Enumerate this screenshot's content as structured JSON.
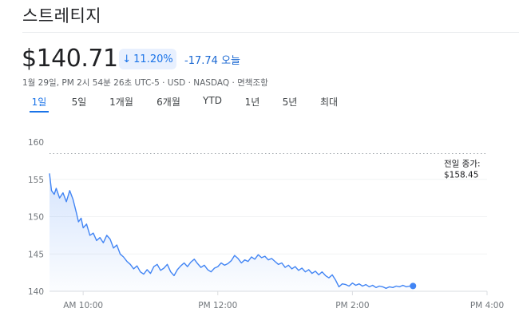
{
  "title": "스트레티지",
  "price": "$140.71",
  "change": {
    "percent": "11.20%",
    "amount": "-17.74",
    "period": "오늘",
    "direction_icon": "arrow-down-icon",
    "color": "#1a73e8"
  },
  "meta": "1월 29일, PM 2시 54분 26초 UTC-5 · USD · NASDAQ · 면책조항",
  "tabs": [
    {
      "label": "1일",
      "active": true
    },
    {
      "label": "5일",
      "active": false
    },
    {
      "label": "1개월",
      "active": false
    },
    {
      "label": "6개월",
      "active": false
    },
    {
      "label": "YTD",
      "active": false
    },
    {
      "label": "1년",
      "active": false
    },
    {
      "label": "5년",
      "active": false
    },
    {
      "label": "최대",
      "active": false
    }
  ],
  "chart_data": {
    "type": "area",
    "y_ticks": [
      "160",
      "155",
      "150",
      "145",
      "140"
    ],
    "x_ticks": [
      "AM 10:00",
      "PM 12:00",
      "PM 2:00",
      "PM 4:00"
    ],
    "ylim": [
      140,
      160
    ],
    "previous_close": {
      "label_line1": "전일 종가:",
      "label_line2": "$158.45",
      "value": 158.45
    },
    "line_color": "#4285f4",
    "series": [
      {
        "values": [
          [
            9.5,
            155.8
          ],
          [
            9.53,
            153.5
          ],
          [
            9.57,
            153.0
          ],
          [
            9.6,
            153.8
          ],
          [
            9.65,
            152.5
          ],
          [
            9.7,
            153.2
          ],
          [
            9.75,
            152.0
          ],
          [
            9.8,
            153.5
          ],
          [
            9.85,
            152.3
          ],
          [
            9.9,
            150.5
          ],
          [
            9.93,
            149.3
          ],
          [
            9.97,
            149.8
          ],
          [
            10.0,
            148.5
          ],
          [
            10.05,
            149.0
          ],
          [
            10.1,
            147.5
          ],
          [
            10.15,
            147.8
          ],
          [
            10.2,
            146.8
          ],
          [
            10.25,
            147.2
          ],
          [
            10.3,
            146.5
          ],
          [
            10.35,
            147.5
          ],
          [
            10.4,
            147.0
          ],
          [
            10.45,
            145.8
          ],
          [
            10.5,
            146.2
          ],
          [
            10.55,
            145.0
          ],
          [
            10.6,
            144.6
          ],
          [
            10.65,
            144.0
          ],
          [
            10.7,
            143.6
          ],
          [
            10.75,
            143.0
          ],
          [
            10.8,
            143.4
          ],
          [
            10.85,
            142.6
          ],
          [
            10.9,
            142.3
          ],
          [
            10.95,
            142.9
          ],
          [
            11.0,
            142.4
          ],
          [
            11.05,
            143.3
          ],
          [
            11.1,
            143.6
          ],
          [
            11.15,
            142.8
          ],
          [
            11.2,
            143.1
          ],
          [
            11.25,
            143.6
          ],
          [
            11.3,
            142.6
          ],
          [
            11.35,
            142.1
          ],
          [
            11.4,
            142.9
          ],
          [
            11.45,
            143.4
          ],
          [
            11.5,
            143.8
          ],
          [
            11.55,
            143.3
          ],
          [
            11.6,
            143.9
          ],
          [
            11.65,
            144.3
          ],
          [
            11.7,
            143.7
          ],
          [
            11.75,
            143.2
          ],
          [
            11.8,
            143.5
          ],
          [
            11.85,
            142.9
          ],
          [
            11.9,
            142.6
          ],
          [
            11.95,
            143.1
          ],
          [
            12.0,
            143.3
          ],
          [
            12.05,
            143.8
          ],
          [
            12.1,
            143.5
          ],
          [
            12.15,
            143.7
          ],
          [
            12.2,
            144.1
          ],
          [
            12.25,
            144.8
          ],
          [
            12.3,
            144.4
          ],
          [
            12.35,
            143.8
          ],
          [
            12.4,
            144.2
          ],
          [
            12.45,
            144.0
          ],
          [
            12.5,
            144.6
          ],
          [
            12.55,
            144.3
          ],
          [
            12.6,
            144.9
          ],
          [
            12.65,
            144.5
          ],
          [
            12.7,
            144.7
          ],
          [
            12.75,
            144.2
          ],
          [
            12.8,
            144.4
          ],
          [
            12.85,
            144.0
          ],
          [
            12.9,
            143.6
          ],
          [
            12.95,
            143.8
          ],
          [
            13.0,
            143.2
          ],
          [
            13.05,
            143.5
          ],
          [
            13.1,
            143.0
          ],
          [
            13.15,
            143.3
          ],
          [
            13.2,
            142.8
          ],
          [
            13.25,
            143.1
          ],
          [
            13.3,
            142.6
          ],
          [
            13.35,
            142.9
          ],
          [
            13.4,
            142.4
          ],
          [
            13.45,
            142.7
          ],
          [
            13.5,
            142.2
          ],
          [
            13.55,
            142.6
          ],
          [
            13.6,
            142.1
          ],
          [
            13.65,
            141.8
          ],
          [
            13.7,
            142.2
          ],
          [
            13.75,
            141.5
          ],
          [
            13.8,
            140.6
          ],
          [
            13.85,
            141.0
          ],
          [
            13.9,
            140.9
          ],
          [
            13.95,
            140.7
          ],
          [
            14.0,
            141.1
          ],
          [
            14.05,
            140.8
          ],
          [
            14.1,
            141.0
          ],
          [
            14.15,
            140.7
          ],
          [
            14.2,
            140.9
          ],
          [
            14.25,
            140.6
          ],
          [
            14.3,
            140.8
          ],
          [
            14.35,
            140.5
          ],
          [
            14.4,
            140.7
          ],
          [
            14.45,
            140.6
          ],
          [
            14.5,
            140.4
          ],
          [
            14.55,
            140.6
          ],
          [
            14.6,
            140.5
          ],
          [
            14.65,
            140.7
          ],
          [
            14.7,
            140.6
          ],
          [
            14.75,
            140.8
          ],
          [
            14.8,
            140.6
          ],
          [
            14.85,
            140.7
          ],
          [
            14.9,
            140.71
          ]
        ]
      }
    ]
  }
}
